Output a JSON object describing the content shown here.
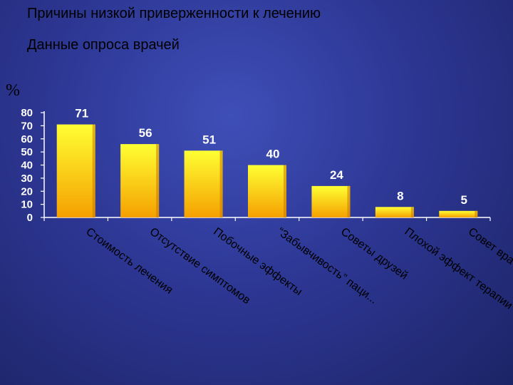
{
  "header": {
    "title": "Причины низкой приверженности к лечению",
    "subtitle": "Данные опроса врачей",
    "unit": "%"
  },
  "colors": {
    "bar_top": "#ffff33",
    "bar_bottom": "#f5a000",
    "bar_right": "#c87800",
    "axis": "#ffffff",
    "background": "#2d3794"
  },
  "chart_data": {
    "type": "bar",
    "categories": [
      "Стоимость лечения",
      "Отсутствие симптомов",
      "Побочные эффекты",
      "“Забывчивость” паци...",
      "Советы друзей",
      "Плохой эффект терапии",
      "Совет врачей"
    ],
    "values": [
      71,
      56,
      51,
      40,
      24,
      8,
      5
    ],
    "value_labels": [
      "71",
      "56",
      "51",
      "40",
      "24",
      "8",
      "5"
    ],
    "yticks": [
      "0",
      "10",
      "20",
      "30",
      "40",
      "50",
      "60",
      "70",
      "80"
    ],
    "ylim": [
      0,
      80
    ],
    "ylabel": "%",
    "grid": false,
    "legend": "none"
  }
}
